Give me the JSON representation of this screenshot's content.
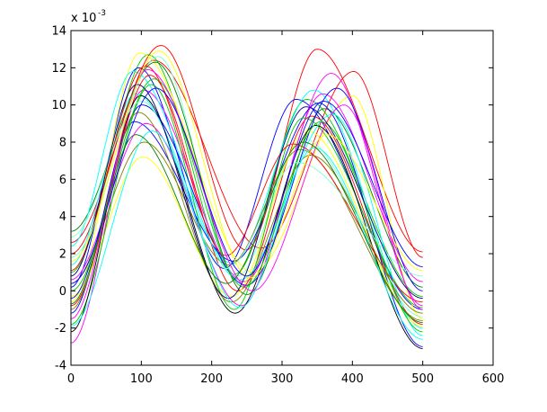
{
  "chart_data": {
    "type": "line",
    "title": "",
    "xlabel": "",
    "ylabel": "",
    "xlim": [
      0,
      600
    ],
    "ylim": [
      -4,
      14
    ],
    "x_ticks": [
      0,
      100,
      200,
      300,
      400,
      500,
      600
    ],
    "y_ticks": [
      -4,
      -2,
      0,
      2,
      4,
      6,
      8,
      10,
      12,
      14
    ],
    "x_tick_labels": [
      "0",
      "100",
      "200",
      "300",
      "400",
      "500",
      "600"
    ],
    "y_tick_labels": [
      "-4",
      "-2",
      "0",
      "2",
      "4",
      "6",
      "8",
      "10",
      "12",
      "14"
    ],
    "y_multiplier": {
      "base": "x 10",
      "exponent": "-3"
    },
    "grid": false,
    "legend": "none",
    "x_range_of_series": [
      0,
      500
    ],
    "series": [
      {
        "color": "#ff0000",
        "start": 2.6,
        "p1x": 128,
        "p1h": 13.2,
        "mid": 2.2,
        "p2x": 350,
        "p2h": 13.0,
        "end": 2.1
      },
      {
        "color": "#ff0000",
        "start": 2.0,
        "p1x": 118,
        "p1h": 12.4,
        "mid": 2.3,
        "p2x": 402,
        "p2h": 11.8,
        "end": 1.8
      },
      {
        "color": "#00cc00",
        "start": 1.0,
        "p1x": 110,
        "p1h": 12.7,
        "mid": 0.9,
        "p2x": 335,
        "p2h": 10.3,
        "end": -0.3
      },
      {
        "color": "#0000ff",
        "start": 0.2,
        "p1x": 96,
        "p1h": 12.0,
        "mid": 1.2,
        "p2x": 320,
        "p2h": 10.3,
        "end": -1.0
      },
      {
        "color": "#ffff00",
        "start": -0.6,
        "p1x": 98,
        "p1h": 12.8,
        "mid": 1.0,
        "p2x": 400,
        "p2h": 10.5,
        "end": -1.5
      },
      {
        "color": "#ff00ff",
        "start": -2.8,
        "p1x": 103,
        "p1h": 10.8,
        "mid": 0.5,
        "p2x": 370,
        "p2h": 11.7,
        "end": -0.8
      },
      {
        "color": "#00ffff",
        "start": 1.4,
        "p1x": 92,
        "p1h": 10.6,
        "mid": 1.5,
        "p2x": 345,
        "p2h": 10.8,
        "end": -2.0
      },
      {
        "color": "#7fffd4",
        "start": 1.8,
        "p1x": 124,
        "p1h": 12.6,
        "mid": 0.8,
        "p2x": 330,
        "p2h": 8.2,
        "end": -1.4
      },
      {
        "color": "#008000",
        "start": 3.2,
        "p1x": 120,
        "p1h": 12.3,
        "mid": -0.2,
        "p2x": 360,
        "p2h": 9.8,
        "end": 0.2
      },
      {
        "color": "#ff0000",
        "start": -0.8,
        "p1x": 112,
        "p1h": 11.6,
        "mid": 0.0,
        "p2x": 342,
        "p2h": 9.4,
        "end": -1.8
      },
      {
        "color": "#0000ff",
        "start": -1.2,
        "p1x": 90,
        "p1h": 9.1,
        "mid": 1.6,
        "p2x": 352,
        "p2h": 10.1,
        "end": -3.0
      },
      {
        "color": "#808000",
        "start": 0.4,
        "p1x": 104,
        "p1h": 8.0,
        "mid": 1.4,
        "p2x": 325,
        "p2h": 7.6,
        "end": -1.6
      },
      {
        "color": "#ffff00",
        "start": -0.3,
        "p1x": 102,
        "p1h": 7.2,
        "mid": -0.3,
        "p2x": 336,
        "p2h": 8.6,
        "end": -1.9
      },
      {
        "color": "#ff00ff",
        "start": 0.6,
        "p1x": 107,
        "p1h": 9.0,
        "mid": -0.8,
        "p2x": 358,
        "p2h": 10.6,
        "end": 0.5
      },
      {
        "color": "#00cc00",
        "start": -1.8,
        "p1x": 114,
        "p1h": 11.1,
        "mid": -1.0,
        "p2x": 330,
        "p2h": 9.3,
        "end": -0.9
      },
      {
        "color": "#000000",
        "start": -2.2,
        "p1x": 99,
        "p1h": 10.5,
        "mid": -1.2,
        "p2x": 348,
        "p2h": 8.9,
        "end": -3.1
      },
      {
        "color": "#00ffff",
        "start": 2.4,
        "p1x": 88,
        "p1h": 11.8,
        "mid": 0.6,
        "p2x": 372,
        "p2h": 9.5,
        "end": -2.4
      },
      {
        "color": "#0000ff",
        "start": -0.4,
        "p1x": 101,
        "p1h": 10.0,
        "mid": 0.3,
        "p2x": 378,
        "p2h": 10.9,
        "end": 0.0
      },
      {
        "color": "#ff0000",
        "start": 1.1,
        "p1x": 106,
        "p1h": 12.1,
        "mid": 1.9,
        "p2x": 315,
        "p2h": 7.9,
        "end": -0.6
      },
      {
        "color": "#808000",
        "start": -1.0,
        "p1x": 96,
        "p1h": 9.6,
        "mid": -0.6,
        "p2x": 340,
        "p2h": 7.3,
        "end": -1.2
      },
      {
        "color": "#00cc00",
        "start": 0.0,
        "p1x": 118,
        "p1h": 11.4,
        "mid": 0.2,
        "p2x": 355,
        "p2h": 9.1,
        "end": -2.2
      },
      {
        "color": "#7fffd4",
        "start": 2.9,
        "p1x": 100,
        "p1h": 10.2,
        "mid": 1.2,
        "p2x": 322,
        "p2h": 6.9,
        "end": 0.8
      },
      {
        "color": "#ff00ff",
        "start": -1.5,
        "p1x": 109,
        "p1h": 11.9,
        "mid": 0.0,
        "p2x": 388,
        "p2h": 10.0,
        "end": -1.0
      },
      {
        "color": "#000080",
        "start": 0.8,
        "p1x": 94,
        "p1h": 11.1,
        "mid": -0.4,
        "p2x": 334,
        "p2h": 9.9,
        "end": -0.4
      },
      {
        "color": "#ffff00",
        "start": 1.6,
        "p1x": 125,
        "p1h": 12.9,
        "mid": 0.7,
        "p2x": 364,
        "p2h": 8.4,
        "end": 1.1
      },
      {
        "color": "#00ffff",
        "start": -1.9,
        "p1x": 115,
        "p1h": 8.6,
        "mid": -0.9,
        "p2x": 346,
        "p2h": 7.7,
        "end": -2.6
      },
      {
        "color": "#0000ff",
        "start": 0.4,
        "p1x": 121,
        "p1h": 10.9,
        "mid": 0.8,
        "p2x": 359,
        "p2h": 10.2,
        "end": 1.3
      },
      {
        "color": "#008000",
        "start": -0.7,
        "p1x": 92,
        "p1h": 8.4,
        "mid": 0.4,
        "p2x": 330,
        "p2h": 8.0,
        "end": -1.7
      }
    ]
  }
}
